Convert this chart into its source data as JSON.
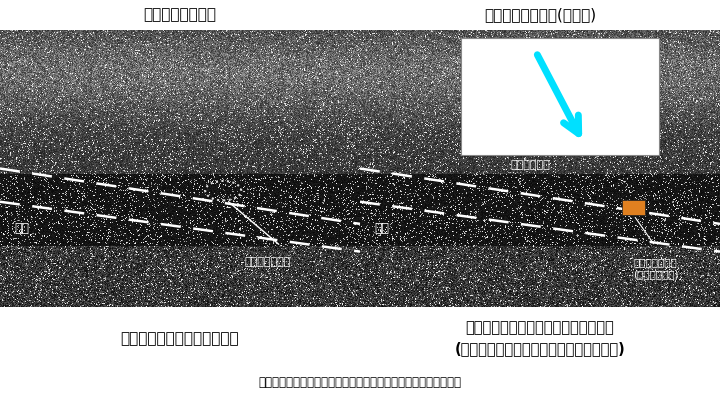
{
  "title_left": "超音波発信機なし",
  "title_right": "超音波発信機あり(本技術)",
  "caption_left": "カテーテル先端位置が不明瞭",
  "caption_right": "カテーテル先端位置を色と矢印で提示\n(先端がエコー画面外の場合、矢印で提示)",
  "footer": "カテーテルを右側から挿入、エコー画像は研究用実験装置で撮影",
  "label_blood_vessel_left": "血管",
  "label_catheter_left": "カテーテル先端",
  "label_blood_vessel_right": "血管",
  "label_indicator": "インジケータ",
  "label_catheter_right": "カテーテル先端\n(超音波発信機)",
  "bg_color": "#ffffff",
  "border_color": "#000000",
  "title_bg": "#ffffff",
  "caption_bg": "#ffffff",
  "ultrasound_bg": "#1a1a1a",
  "dashed_line_color": "#ffffff",
  "indicator_box_bg": "#ffffff",
  "arrow_color": "#00e0ff",
  "orange_rect_color": "#e08020",
  "dotted_circle_color": "#dddddd",
  "text_color_white": "#ffffff",
  "text_color_black": "#000000",
  "figsize": [
    7.2,
    3.97
  ],
  "dpi": 100
}
